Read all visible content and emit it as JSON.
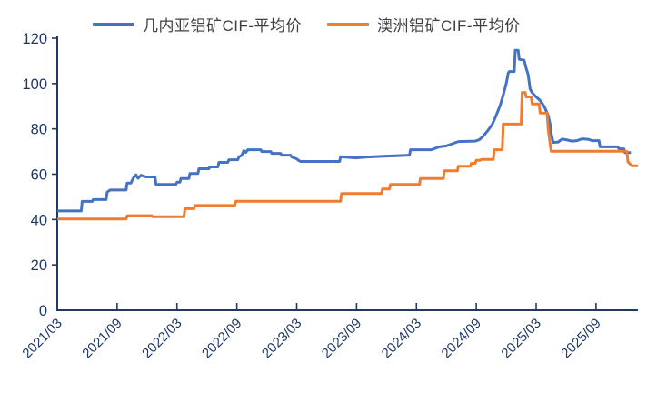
{
  "chart_data": {
    "type": "line",
    "title": "",
    "background_color": "#FFFFFF",
    "axis_color": "#1F3864",
    "tick_label_color": "#1F3864",
    "legend_text_color": "#3F3F3F",
    "legend_position": "top",
    "grid": false,
    "x_unit": "months_since_2021_03",
    "x_range": [
      0,
      58.2
    ],
    "x_tick_positions": [
      0,
      6,
      12,
      18,
      24,
      30,
      36,
      42,
      48,
      54
    ],
    "x_tick_labels": [
      "2021/03",
      "2021/09",
      "2022/03",
      "2022/09",
      "2023/03",
      "2023/09",
      "2024/03",
      "2024/09",
      "2025/03",
      "2025/09"
    ],
    "y_range": [
      0,
      120
    ],
    "y_ticks": [
      0,
      20,
      40,
      60,
      80,
      100,
      120
    ],
    "series": [
      {
        "name": "几内亚铝矿CIF-平均价",
        "color": "#4472C4",
        "points": [
          [
            0,
            43.8
          ],
          [
            2.4,
            43.8
          ],
          [
            2.5,
            48.0
          ],
          [
            3.5,
            48.0
          ],
          [
            3.6,
            48.8
          ],
          [
            4.9,
            48.8
          ],
          [
            5.0,
            52.1
          ],
          [
            5.3,
            53.0
          ],
          [
            6.9,
            53.0
          ],
          [
            7.0,
            56.1
          ],
          [
            7.4,
            56.1
          ],
          [
            7.6,
            58.1
          ],
          [
            7.9,
            59.7
          ],
          [
            8.1,
            58.2
          ],
          [
            8.4,
            59.5
          ],
          [
            8.9,
            58.8
          ],
          [
            9.8,
            58.8
          ],
          [
            9.9,
            55.5
          ],
          [
            11.9,
            55.5
          ],
          [
            12.0,
            56.5
          ],
          [
            12.3,
            56.5
          ],
          [
            12.4,
            58.1
          ],
          [
            13.2,
            58.1
          ],
          [
            13.3,
            60.3
          ],
          [
            14.1,
            60.3
          ],
          [
            14.2,
            62.4
          ],
          [
            15.2,
            62.4
          ],
          [
            15.3,
            63.2
          ],
          [
            16.1,
            63.2
          ],
          [
            16.2,
            65.2
          ],
          [
            17.1,
            65.2
          ],
          [
            17.2,
            66.4
          ],
          [
            18.1,
            66.4
          ],
          [
            18.2,
            67.6
          ],
          [
            18.5,
            68.4
          ],
          [
            18.7,
            70.4
          ],
          [
            18.9,
            69.6
          ],
          [
            19.1,
            70.8
          ],
          [
            20.4,
            70.8
          ],
          [
            20.5,
            70.0
          ],
          [
            21.4,
            70.0
          ],
          [
            21.5,
            69.2
          ],
          [
            22.4,
            69.2
          ],
          [
            22.5,
            68.4
          ],
          [
            23.4,
            68.4
          ],
          [
            23.5,
            67.6
          ],
          [
            24.0,
            66.8
          ],
          [
            24.2,
            66.0
          ],
          [
            24.4,
            65.6
          ],
          [
            28.3,
            65.6
          ],
          [
            28.4,
            67.7
          ],
          [
            29.9,
            67.2
          ],
          [
            31.0,
            67.6
          ],
          [
            33.0,
            68.0
          ],
          [
            35.3,
            68.4
          ],
          [
            35.4,
            70.8
          ],
          [
            37.5,
            70.8
          ],
          [
            38.3,
            72.1
          ],
          [
            39.0,
            72.5
          ],
          [
            40.2,
            74.4
          ],
          [
            41.9,
            74.6
          ],
          [
            42.3,
            75.2
          ],
          [
            42.7,
            76.8
          ],
          [
            43.2,
            79.5
          ],
          [
            43.6,
            82.0
          ],
          [
            44.0,
            86.0
          ],
          [
            44.4,
            90.5
          ],
          [
            44.7,
            95.0
          ],
          [
            45.0,
            100.0
          ],
          [
            45.2,
            104.7
          ],
          [
            45.3,
            105.3
          ],
          [
            45.8,
            105.3
          ],
          [
            45.9,
            114.7
          ],
          [
            46.2,
            114.7
          ],
          [
            46.3,
            110.7
          ],
          [
            46.8,
            110.3
          ],
          [
            47.0,
            106.7
          ],
          [
            47.2,
            104.0
          ],
          [
            47.4,
            97.5
          ],
          [
            47.6,
            96.0
          ],
          [
            47.9,
            94.5
          ],
          [
            48.4,
            92.5
          ],
          [
            48.8,
            90.0
          ],
          [
            49.0,
            88.0
          ],
          [
            49.2,
            86.0
          ],
          [
            49.4,
            82.0
          ],
          [
            49.5,
            78.1
          ],
          [
            49.7,
            74.0
          ],
          [
            50.2,
            74.2
          ],
          [
            50.6,
            75.5
          ],
          [
            51.0,
            75.2
          ],
          [
            51.6,
            74.6
          ],
          [
            52.1,
            74.8
          ],
          [
            52.6,
            75.6
          ],
          [
            53.2,
            75.4
          ],
          [
            53.6,
            74.8
          ],
          [
            54.3,
            74.8
          ],
          [
            54.4,
            72.1
          ],
          [
            56.2,
            72.1
          ],
          [
            56.3,
            71.2
          ],
          [
            56.8,
            71.2
          ],
          [
            56.9,
            69.5
          ],
          [
            57.5,
            69.5
          ]
        ]
      },
      {
        "name": "澳洲铝矿CIF-平均价",
        "color": "#ED7D31",
        "points": [
          [
            0,
            40.2
          ],
          [
            6.9,
            40.2
          ],
          [
            7.0,
            41.7
          ],
          [
            9.5,
            41.7
          ],
          [
            9.6,
            41.2
          ],
          [
            12.7,
            41.2
          ],
          [
            12.8,
            44.8
          ],
          [
            13.7,
            44.8
          ],
          [
            13.8,
            46.2
          ],
          [
            17.8,
            46.2
          ],
          [
            17.9,
            48.1
          ],
          [
            28.4,
            48.1
          ],
          [
            28.5,
            51.5
          ],
          [
            32.5,
            51.5
          ],
          [
            32.6,
            53.5
          ],
          [
            33.3,
            53.5
          ],
          [
            33.4,
            55.5
          ],
          [
            36.3,
            55.5
          ],
          [
            36.4,
            58.1
          ],
          [
            38.7,
            58.1
          ],
          [
            38.8,
            61.5
          ],
          [
            40.1,
            61.5
          ],
          [
            40.2,
            63.5
          ],
          [
            41.4,
            63.5
          ],
          [
            41.5,
            64.8
          ],
          [
            41.9,
            64.8
          ],
          [
            42.0,
            66.1
          ],
          [
            42.4,
            66.1
          ],
          [
            42.5,
            66.5
          ],
          [
            43.7,
            66.5
          ],
          [
            43.8,
            70.8
          ],
          [
            44.6,
            70.8
          ],
          [
            44.7,
            82.1
          ],
          [
            46.5,
            82.1
          ],
          [
            46.6,
            96.1
          ],
          [
            46.9,
            96.1
          ],
          [
            47.0,
            94.1
          ],
          [
            47.5,
            94.1
          ],
          [
            47.6,
            91.0
          ],
          [
            48.3,
            91.0
          ],
          [
            48.4,
            87.0
          ],
          [
            49.1,
            87.0
          ],
          [
            49.2,
            80.0
          ],
          [
            49.5,
            70.1
          ],
          [
            57.0,
            70.1
          ],
          [
            57.1,
            69.9
          ],
          [
            57.2,
            65.5
          ],
          [
            57.6,
            63.7
          ],
          [
            58.2,
            63.7
          ]
        ]
      }
    ]
  }
}
